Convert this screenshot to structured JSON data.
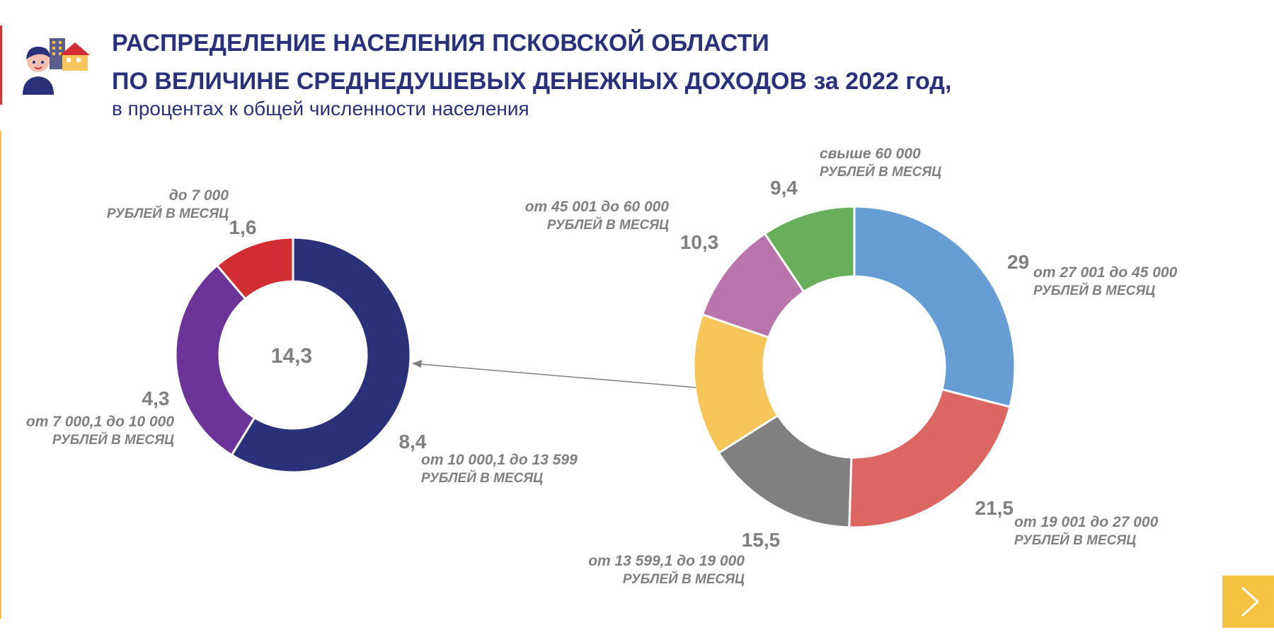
{
  "header": {
    "title_line1": "РАСПРЕДЕЛЕНИЕ НАСЕЛЕНИЯ ПСКОВСКОЙ ОБЛАСТИ",
    "title_line2": "ПО ВЕЛИЧИНЕ СРЕДНЕДУШЕВЫХ ДЕНЕЖНЫХ ДОХОДОВ за 2022 год,",
    "subtitle": "в процентах к общей численности населения"
  },
  "navigation": {
    "next_icon": "chevron-right-icon"
  },
  "chart_data": [
    {
      "type": "pie",
      "slices": [
        {
          "value": 29,
          "value_label": "29",
          "label_line1": "от 27 001 до  45 000",
          "label_line2": "РУБЛЕЙ В МЕСЯЦ",
          "color": "#659dd4"
        },
        {
          "value": 21.5,
          "value_label": "21,5",
          "label_line1": "от 19 001 до 27 000",
          "label_line2": "РУБЛЕЙ В МЕСЯЦ",
          "color": "#dc6762"
        },
        {
          "value": 15.5,
          "value_label": "15,5",
          "label_line1": "от 13 599,1 до 19 000",
          "label_line2": "РУБЛЕЙ В МЕСЯЦ",
          "color": "#808080"
        },
        {
          "value": 14.3,
          "value_label": "",
          "label_line1": "",
          "label_line2": "",
          "color": "#f6c65a"
        },
        {
          "value": 10.3,
          "value_label": "10,3",
          "label_line1": "от 45 001 до 60 000",
          "label_line2": "РУБЛЕЙ В МЕСЯЦ",
          "color": "#b874ab"
        },
        {
          "value": 9.4,
          "value_label": "9,4",
          "label_line1": "свыше 60 000",
          "label_line2": "РУБЛЕЙ В МЕСЯЦ",
          "color": "#69ae5a"
        }
      ]
    },
    {
      "type": "pie",
      "center_label": "14,3",
      "slices": [
        {
          "value": 8.4,
          "value_label": "8,4",
          "label_line1": "от  10 000,1 до 13 599",
          "label_line2": "РУБЛЕЙ В МЕСЯЦ",
          "color": "#2b3178"
        },
        {
          "value": 4.3,
          "value_label": "4,3",
          "label_line1": "от  7 000,1 до 10 000",
          "label_line2": "РУБЛЕЙ В МЕСЯЦ",
          "color": "#6b3499"
        },
        {
          "value": 1.6,
          "value_label": "1,6",
          "label_line1": "до 7 000",
          "label_line2": "РУБЛЕЙ В МЕСЯЦ",
          "color": "#d22d33"
        }
      ]
    }
  ]
}
